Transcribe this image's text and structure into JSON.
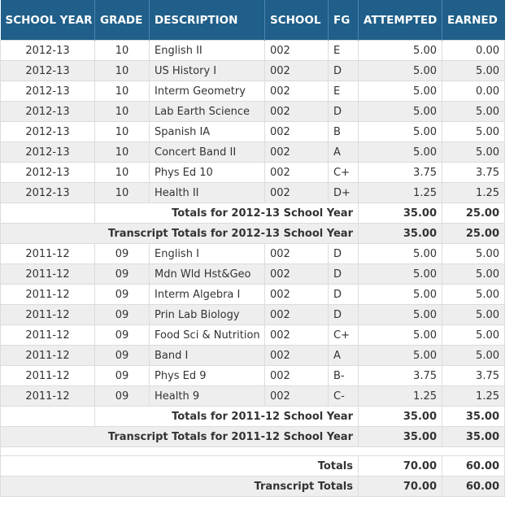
{
  "headers": {
    "school_year": "SCHOOL YEAR",
    "grade": "GRADE",
    "description": "DESCRIPTION",
    "school": "SCHOOL",
    "fg": "FG",
    "attempted": "ATTEMPTED",
    "earned": "EARNED"
  },
  "year1": {
    "rows": [
      {
        "year": "2012-13",
        "grade": "10",
        "desc": "English II",
        "school": "002",
        "fg": "E",
        "attempted": "5.00",
        "earned": "0.00"
      },
      {
        "year": "2012-13",
        "grade": "10",
        "desc": "US History I",
        "school": "002",
        "fg": "D",
        "attempted": "5.00",
        "earned": "5.00"
      },
      {
        "year": "2012-13",
        "grade": "10",
        "desc": "Interm Geometry",
        "school": "002",
        "fg": "E",
        "attempted": "5.00",
        "earned": "0.00"
      },
      {
        "year": "2012-13",
        "grade": "10",
        "desc": "Lab Earth Science",
        "school": "002",
        "fg": "D",
        "attempted": "5.00",
        "earned": "5.00"
      },
      {
        "year": "2012-13",
        "grade": "10",
        "desc": "Spanish IA",
        "school": "002",
        "fg": "B",
        "attempted": "5.00",
        "earned": "5.00"
      },
      {
        "year": "2012-13",
        "grade": "10",
        "desc": "Concert Band II",
        "school": "002",
        "fg": "A",
        "attempted": "5.00",
        "earned": "5.00"
      },
      {
        "year": "2012-13",
        "grade": "10",
        "desc": "Phys Ed 10",
        "school": "002",
        "fg": "C+",
        "attempted": "3.75",
        "earned": "3.75"
      },
      {
        "year": "2012-13",
        "grade": "10",
        "desc": "Health II",
        "school": "002",
        "fg": "D+",
        "attempted": "1.25",
        "earned": "1.25"
      }
    ],
    "totals_label": "Totals for 2012-13 School Year",
    "totals_attempted": "35.00",
    "totals_earned": "25.00",
    "transcript_label": "Transcript Totals for 2012-13 School Year",
    "transcript_attempted": "35.00",
    "transcript_earned": "25.00"
  },
  "year2": {
    "rows": [
      {
        "year": "2011-12",
        "grade": "09",
        "desc": "English I",
        "school": "002",
        "fg": "D",
        "attempted": "5.00",
        "earned": "5.00"
      },
      {
        "year": "2011-12",
        "grade": "09",
        "desc": "Mdn Wld Hst&Geo",
        "school": "002",
        "fg": "D",
        "attempted": "5.00",
        "earned": "5.00"
      },
      {
        "year": "2011-12",
        "grade": "09",
        "desc": "Interm Algebra I",
        "school": "002",
        "fg": "D",
        "attempted": "5.00",
        "earned": "5.00"
      },
      {
        "year": "2011-12",
        "grade": "09",
        "desc": "Prin Lab Biology",
        "school": "002",
        "fg": "D",
        "attempted": "5.00",
        "earned": "5.00"
      },
      {
        "year": "2011-12",
        "grade": "09",
        "desc": "Food Sci & Nutrition",
        "school": "002",
        "fg": "C+",
        "attempted": "5.00",
        "earned": "5.00"
      },
      {
        "year": "2011-12",
        "grade": "09",
        "desc": "Band I",
        "school": "002",
        "fg": "A",
        "attempted": "5.00",
        "earned": "5.00"
      },
      {
        "year": "2011-12",
        "grade": "09",
        "desc": "Phys Ed 9",
        "school": "002",
        "fg": "B-",
        "attempted": "3.75",
        "earned": "3.75"
      },
      {
        "year": "2011-12",
        "grade": "09",
        "desc": "Health 9",
        "school": "002",
        "fg": "C-",
        "attempted": "1.25",
        "earned": "1.25"
      }
    ],
    "totals_label": "Totals for 2011-12 School Year",
    "totals_attempted": "35.00",
    "totals_earned": "35.00",
    "transcript_label": "Transcript Totals for 2011-12 School Year",
    "transcript_attempted": "35.00",
    "transcript_earned": "35.00"
  },
  "grand": {
    "totals_label": "Totals",
    "totals_attempted": "70.00",
    "totals_earned": "60.00",
    "transcript_label": "Transcript Totals",
    "transcript_attempted": "70.00",
    "transcript_earned": "60.00"
  }
}
